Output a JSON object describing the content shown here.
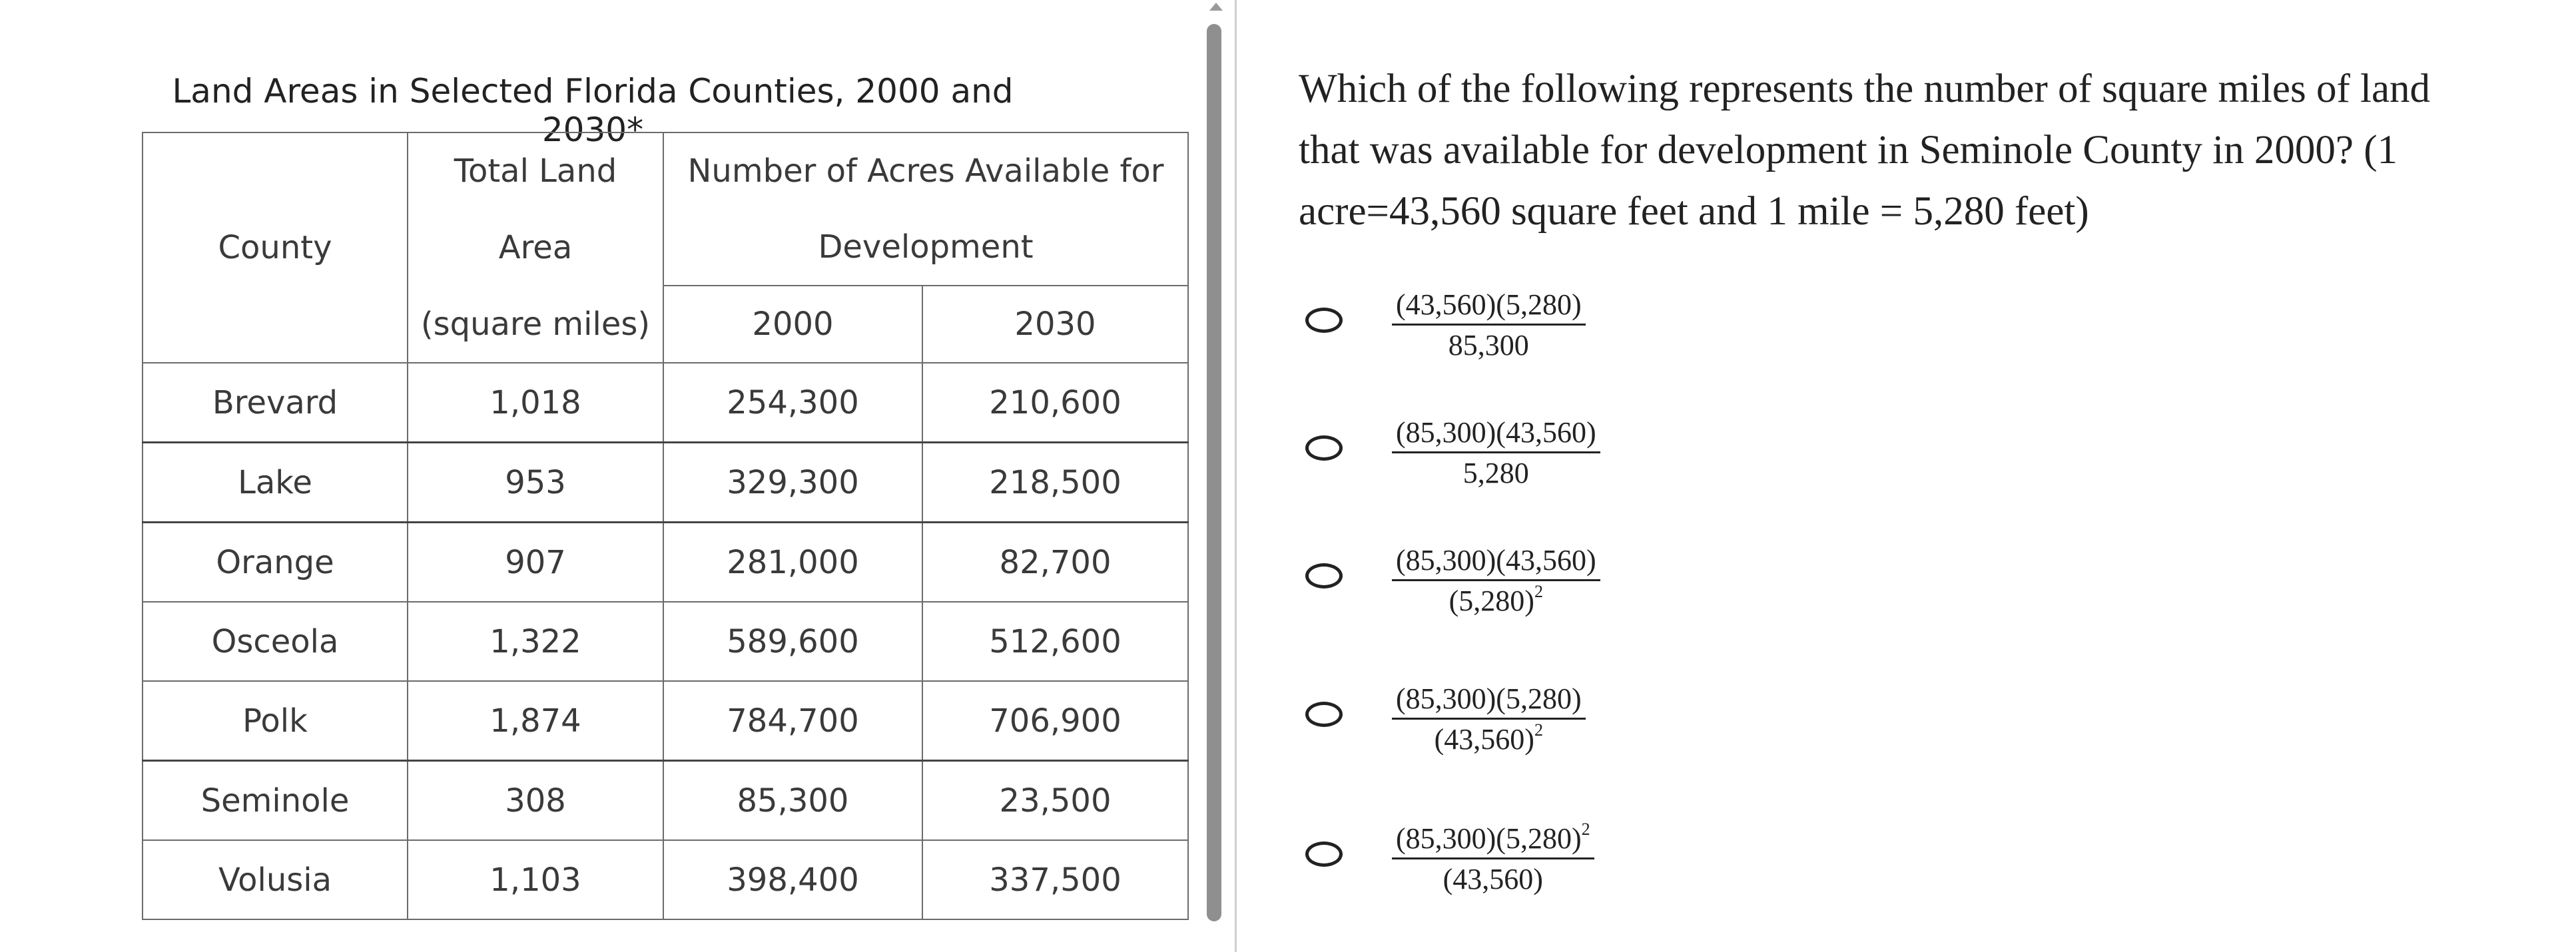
{
  "table": {
    "title": "Land Areas in Selected Florida Counties, 2000 and 2030*",
    "headers": {
      "county": "County",
      "land_line1": "Total Land",
      "land_line2": "Area",
      "land_line3": "(square miles)",
      "acres_line1": "Number of Acres Available for",
      "acres_line2": "Development",
      "year_2000": "2000",
      "year_2030": "2030"
    },
    "rows": [
      {
        "county": "Brevard",
        "area": "1,018",
        "y2000": "254,300",
        "y2030": "210,600"
      },
      {
        "county": "Lake",
        "area": "953",
        "y2000": "329,300",
        "y2030": "218,500"
      },
      {
        "county": "Orange",
        "area": "907",
        "y2000": "281,000",
        "y2030": "82,700"
      },
      {
        "county": "Osceola",
        "area": "1,322",
        "y2000": "589,600",
        "y2030": "512,600"
      },
      {
        "county": "Polk",
        "area": "1,874",
        "y2000": "784,700",
        "y2030": "706,900"
      },
      {
        "county": "Seminole",
        "area": "308",
        "y2000": "85,300",
        "y2030": "23,500"
      },
      {
        "county": "Volusia",
        "area": "1,103",
        "y2000": "398,400",
        "y2030": "337,500"
      }
    ]
  },
  "question": {
    "text": "Which of the following represents the number of square miles of land that was available for development in Seminole County in 2000? (1 acre=43,560 square feet and 1 mile = 5,280 feet)"
  },
  "choices": [
    {
      "num": "(43,560)(5,280)",
      "num_exp": "",
      "den": "85,300",
      "den_exp": ""
    },
    {
      "num": "(85,300)(43,560)",
      "num_exp": "",
      "den": "5,280",
      "den_exp": ""
    },
    {
      "num": "(85,300)(43,560)",
      "num_exp": "",
      "den": "(5,280)",
      "den_exp": "2"
    },
    {
      "num": "(85,300)(5,280)",
      "num_exp": "",
      "den": "(43,560)",
      "den_exp": "2"
    },
    {
      "num": "(85,300)(5,280)",
      "num_exp": "2",
      "den": "(43,560)",
      "den_exp": ""
    }
  ]
}
